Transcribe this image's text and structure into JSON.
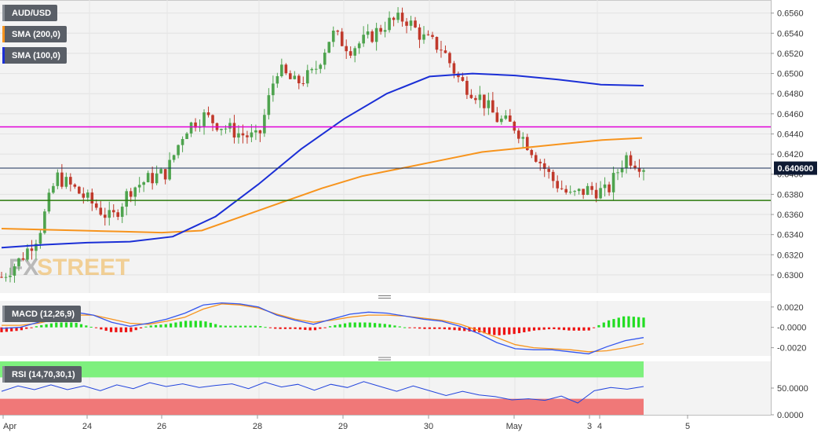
{
  "legend": {
    "pair": "AUD/USD",
    "sma200": "SMA (200,0)",
    "sma100": "SMA (100,0)",
    "macd": "MACD (12,26,9)",
    "rsi": "RSI (14,70,30,1)"
  },
  "watermark": {
    "part1": "FX",
    "part2": "STREET"
  },
  "colors": {
    "sma200": "#f7941d",
    "sma100": "#1b2fd6",
    "resistance": "#e000d8",
    "support": "#2b7a0b",
    "price_line": "#1a2f5a",
    "macd_line": "#3355ee",
    "signal_line": "#f7941d",
    "hist_pos": "#22dd22",
    "hist_neg": "#ee1111",
    "rsi_line": "#2244dd",
    "rsi_upper": "#7ef07e",
    "rsi_lower": "#f07878"
  },
  "chart_data": [
    {
      "type": "candlestick",
      "title": "AUD/USD",
      "x_labels": [
        "Apr",
        "24",
        "26",
        "28",
        "29",
        "30",
        "May",
        "3",
        "4",
        "5"
      ],
      "y_ticks": [
        "0.6560",
        "0.6540",
        "0.6520",
        "0.6500",
        "0.6480",
        "0.6460",
        "0.6440",
        "0.6420",
        "0.6400",
        "0.6380",
        "0.6360",
        "0.6340",
        "0.6320",
        "0.6300"
      ],
      "ylim": [
        0.6282,
        0.6573
      ],
      "current_price": "0.640600",
      "horizontal_levels": [
        {
          "name": "resistance",
          "value": 0.6447
        },
        {
          "name": "support",
          "value": 0.6374
        }
      ],
      "ohlc_anchor_closes": [
        0.6298,
        0.6315,
        0.634,
        0.6398,
        0.6385,
        0.637,
        0.6355,
        0.6385,
        0.6395,
        0.6402,
        0.6445,
        0.6458,
        0.6448,
        0.644,
        0.6435,
        0.6505,
        0.649,
        0.65,
        0.654,
        0.6525,
        0.6535,
        0.655,
        0.6555,
        0.6535,
        0.6525,
        0.6492,
        0.6478,
        0.6455,
        0.6447,
        0.6422,
        0.6395,
        0.6378,
        0.6385,
        0.6382,
        0.6418,
        0.6408
      ],
      "sma200": [
        0.6346,
        0.6345,
        0.6344,
        0.6343,
        0.6342,
        0.6344,
        0.6358,
        0.6372,
        0.6386,
        0.6398,
        0.6406,
        0.6414,
        0.6422,
        0.6426,
        0.643,
        0.6434,
        0.6436
      ],
      "sma100": [
        0.6327,
        0.633,
        0.6332,
        0.6333,
        0.6338,
        0.6358,
        0.639,
        0.6425,
        0.6455,
        0.648,
        0.6497,
        0.65,
        0.6498,
        0.6494,
        0.6489,
        0.6488
      ]
    },
    {
      "type": "line",
      "title": "MACD (12,26,9)",
      "y_ticks": [
        "0.0020",
        "-0.0000",
        "-0.0020"
      ],
      "ylim": [
        -0.0028,
        0.0026
      ],
      "macd": [
        -0.0001,
        0.0,
        0.0005,
        0.0011,
        0.0015,
        0.0012,
        0.0005,
        0.0001,
        0.0004,
        0.0008,
        0.0014,
        0.0022,
        0.0024,
        0.0023,
        0.002,
        0.0012,
        0.0007,
        0.0003,
        0.0008,
        0.0013,
        0.0015,
        0.0014,
        0.0011,
        0.0008,
        0.0006,
        0.0001,
        -0.0006,
        -0.0015,
        -0.0021,
        -0.0022,
        -0.0022,
        -0.0024,
        -0.0026,
        -0.0019,
        -0.0013,
        -0.001
      ],
      "signal": [
        0.0002,
        0.0002,
        0.0004,
        0.0008,
        0.0012,
        0.0012,
        0.0008,
        0.0004,
        0.0003,
        0.0006,
        0.001,
        0.0018,
        0.0023,
        0.0022,
        0.0019,
        0.0013,
        0.0008,
        0.0005,
        0.0007,
        0.001,
        0.0012,
        0.0012,
        0.0011,
        0.0009,
        0.0007,
        0.0003,
        -0.0003,
        -0.001,
        -0.0017,
        -0.002,
        -0.0021,
        -0.0022,
        -0.0024,
        -0.0023,
        -0.002,
        -0.0016
      ],
      "histogram_range": [
        -0.0007,
        0.0006
      ]
    },
    {
      "type": "line",
      "title": "RSI (14,70,30,1)",
      "y_ticks": [
        "50.0000",
        "0.0000"
      ],
      "ylim": [
        0,
        100
      ],
      "bands": {
        "upper": 70,
        "lower": 30
      },
      "rsi": [
        44,
        54,
        47,
        56,
        47,
        54,
        45,
        56,
        49,
        60,
        53,
        58,
        51,
        55,
        58,
        49,
        61,
        52,
        57,
        46,
        57,
        51,
        62,
        53,
        44,
        54,
        45,
        36,
        44,
        37,
        34,
        28,
        30,
        27,
        35,
        22,
        45,
        51,
        48,
        53
      ]
    }
  ]
}
